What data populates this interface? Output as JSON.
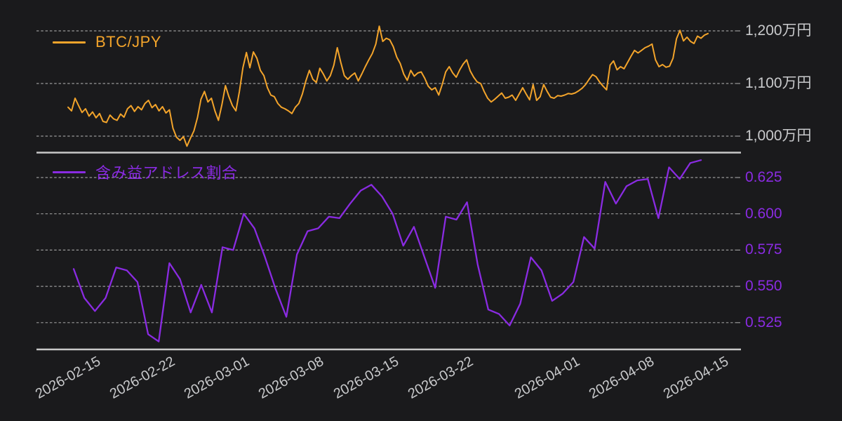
{
  "background": "#1a1a1c",
  "text_color": "#c9cacc",
  "grid_color": "#9a9a9a",
  "spine_color": "#c8c8c8",
  "x_axis": {
    "tick_labels": [
      "2026-02-15",
      "2026-02-22",
      "2026-03-01",
      "2026-03-08",
      "2026-03-15",
      "2026-03-22",
      "2026-04-01",
      "2026-04-08",
      "2026-04-15"
    ],
    "tick_positions": [
      0.0777,
      0.1833,
      0.2888,
      0.3944,
      0.501,
      0.6066,
      0.758,
      0.8636,
      0.9691
    ]
  },
  "chart_data": [
    {
      "type": "line",
      "legend": "BTC/JPY",
      "color": "#f3a42b",
      "tick_color": "#c9cacc",
      "unit": "万円",
      "x_start": "2026-02-13",
      "x_end": "2026-04-14",
      "ylim": [
        969,
        1245
      ],
      "yticks": [
        {
          "value": 1200,
          "label": "1,200万円"
        },
        {
          "value": 1100,
          "label": "1,100万円"
        },
        {
          "value": 1000,
          "label": "1,000万円"
        }
      ],
      "values": [
        1055,
        1048,
        1072,
        1058,
        1045,
        1052,
        1038,
        1046,
        1035,
        1043,
        1028,
        1026,
        1040,
        1033,
        1030,
        1042,
        1036,
        1052,
        1058,
        1047,
        1056,
        1050,
        1062,
        1068,
        1054,
        1060,
        1048,
        1056,
        1044,
        1050,
        1015,
        998,
        992,
        999,
        981,
        996,
        1010,
        1035,
        1070,
        1085,
        1065,
        1072,
        1048,
        1030,
        1060,
        1096,
        1075,
        1058,
        1048,
        1085,
        1130,
        1159,
        1130,
        1160,
        1148,
        1125,
        1115,
        1092,
        1078,
        1075,
        1062,
        1055,
        1052,
        1048,
        1043,
        1055,
        1062,
        1080,
        1105,
        1125,
        1108,
        1102,
        1129,
        1118,
        1105,
        1115,
        1135,
        1168,
        1140,
        1115,
        1108,
        1115,
        1120,
        1105,
        1118,
        1132,
        1145,
        1157,
        1175,
        1209,
        1180,
        1186,
        1183,
        1170,
        1150,
        1138,
        1118,
        1106,
        1125,
        1114,
        1120,
        1122,
        1110,
        1095,
        1088,
        1092,
        1078,
        1098,
        1122,
        1132,
        1120,
        1112,
        1126,
        1137,
        1145,
        1124,
        1112,
        1103,
        1100,
        1085,
        1072,
        1065,
        1070,
        1076,
        1082,
        1072,
        1074,
        1078,
        1068,
        1080,
        1092,
        1080,
        1069,
        1098,
        1068,
        1075,
        1098,
        1085,
        1074,
        1072,
        1077,
        1076,
        1078,
        1081,
        1080,
        1082,
        1086,
        1091,
        1098,
        1108,
        1117,
        1113,
        1103,
        1095,
        1088,
        1135,
        1143,
        1126,
        1132,
        1128,
        1140,
        1152,
        1163,
        1158,
        1163,
        1168,
        1171,
        1175,
        1145,
        1132,
        1136,
        1131,
        1133,
        1148,
        1185,
        1201,
        1181,
        1188,
        1180,
        1176,
        1190,
        1186,
        1192,
        1195
      ]
    },
    {
      "type": "line",
      "legend": "含み益アドレス割合",
      "color": "#8a2be2",
      "tick_color": "#8a2be2",
      "unit": "",
      "x_start": "2026-02-13",
      "x_end": "2026-04-13",
      "ylim": [
        0.5065,
        0.6424
      ],
      "yticks": [
        {
          "value": 0.625,
          "label": "0.625"
        },
        {
          "value": 0.6,
          "label": "0.600"
        },
        {
          "value": 0.575,
          "label": "0.575"
        },
        {
          "value": 0.55,
          "label": "0.550"
        },
        {
          "value": 0.525,
          "label": "0.525"
        }
      ],
      "values": [
        0.562,
        0.542,
        0.533,
        0.542,
        0.563,
        0.561,
        0.553,
        0.517,
        0.512,
        0.566,
        0.555,
        0.532,
        0.551,
        0.532,
        0.577,
        0.575,
        0.6,
        0.59,
        0.57,
        0.548,
        0.529,
        0.572,
        0.588,
        0.59,
        0.598,
        0.597,
        0.607,
        0.616,
        0.62,
        0.612,
        0.6,
        0.578,
        0.591,
        0.57,
        0.549,
        0.598,
        0.596,
        0.608,
        0.565,
        0.534,
        0.531,
        0.523,
        0.538,
        0.57,
        0.561,
        0.54,
        0.545,
        0.553,
        0.584,
        0.576,
        0.622,
        0.607,
        0.619,
        0.623,
        0.624,
        0.597,
        0.632,
        0.624,
        0.635,
        0.637
      ]
    }
  ]
}
